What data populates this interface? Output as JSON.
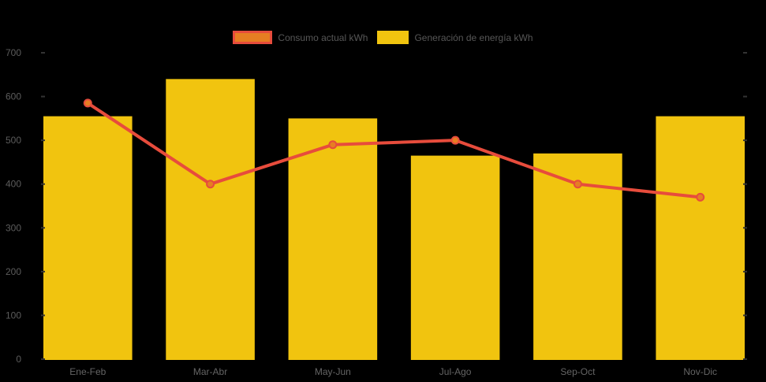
{
  "app": {
    "background_color": "#000000",
    "axis_text_color": "#5c5c5c",
    "x_label_color": "#646464"
  },
  "legend": {
    "items": [
      {
        "label": "Consumo actual kWh",
        "type": "line",
        "fill": "#e67e22",
        "border": "#e74c3c"
      },
      {
        "label": "Generación de energía kWh",
        "type": "bar",
        "fill": "#f1c40f",
        "border": "#f1c40f"
      }
    ]
  },
  "chart_data": {
    "type": "bar",
    "title": "",
    "xlabel": "",
    "ylabel": "",
    "categories": [
      "Ene-Feb",
      "Mar-Abr",
      "May-Jun",
      "Jul-Ago",
      "Sep-Oct",
      "Nov-Dic"
    ],
    "series": [
      {
        "name": "Consumo actual kWh",
        "type": "line",
        "values": [
          585,
          400,
          490,
          500,
          400,
          370
        ],
        "color": "#e74c3c",
        "marker_fill": "#e67e22"
      },
      {
        "name": "Generación de energía kWh",
        "type": "bar",
        "values": [
          555,
          640,
          550,
          465,
          470,
          555
        ],
        "color": "#f1c40f"
      }
    ],
    "ylim": [
      0,
      700
    ],
    "yticks": [
      0,
      100,
      200,
      300,
      400,
      500,
      600,
      700
    ],
    "grid": false,
    "legend_position": "top"
  }
}
